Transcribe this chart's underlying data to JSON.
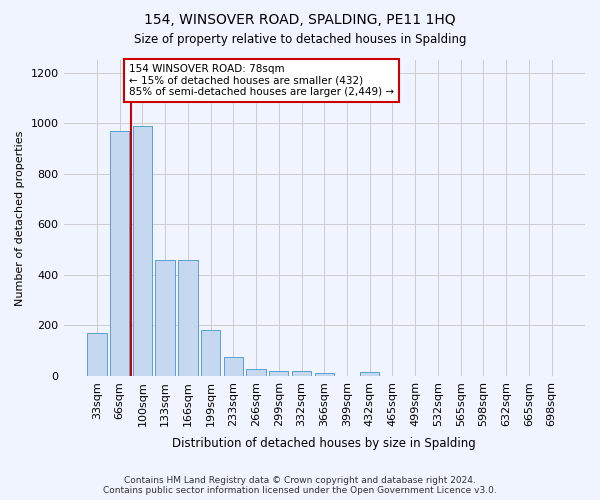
{
  "title": "154, WINSOVER ROAD, SPALDING, PE11 1HQ",
  "subtitle": "Size of property relative to detached houses in Spalding",
  "xlabel": "Distribution of detached houses by size in Spalding",
  "ylabel": "Number of detached properties",
  "bar_color": "#c5d8ef",
  "bar_edge_color": "#5a9fd4",
  "grid_color": "#cccccc",
  "annotation_box_color": "#cc0000",
  "annotation_line_color": "#cc0000",
  "categories": [
    "33sqm",
    "66sqm",
    "100sqm",
    "133sqm",
    "166sqm",
    "199sqm",
    "233sqm",
    "266sqm",
    "299sqm",
    "332sqm",
    "366sqm",
    "399sqm",
    "432sqm",
    "465sqm",
    "499sqm",
    "532sqm",
    "565sqm",
    "598sqm",
    "632sqm",
    "665sqm",
    "698sqm"
  ],
  "values": [
    170,
    970,
    990,
    460,
    460,
    183,
    75,
    28,
    20,
    18,
    12,
    0,
    15,
    0,
    0,
    0,
    0,
    0,
    0,
    0,
    0
  ],
  "ylim": [
    0,
    1250
  ],
  "yticks": [
    0,
    200,
    400,
    600,
    800,
    1000,
    1200
  ],
  "annotation_text": "154 WINSOVER ROAD: 78sqm\n← 15% of detached houses are smaller (432)\n85% of semi-detached houses are larger (2,449) →",
  "vline_x": 1.5,
  "vline_color": "#cc0000",
  "footer_line1": "Contains HM Land Registry data © Crown copyright and database right 2024.",
  "footer_line2": "Contains public sector information licensed under the Open Government Licence v3.0.",
  "background_color": "#f0f4ff"
}
